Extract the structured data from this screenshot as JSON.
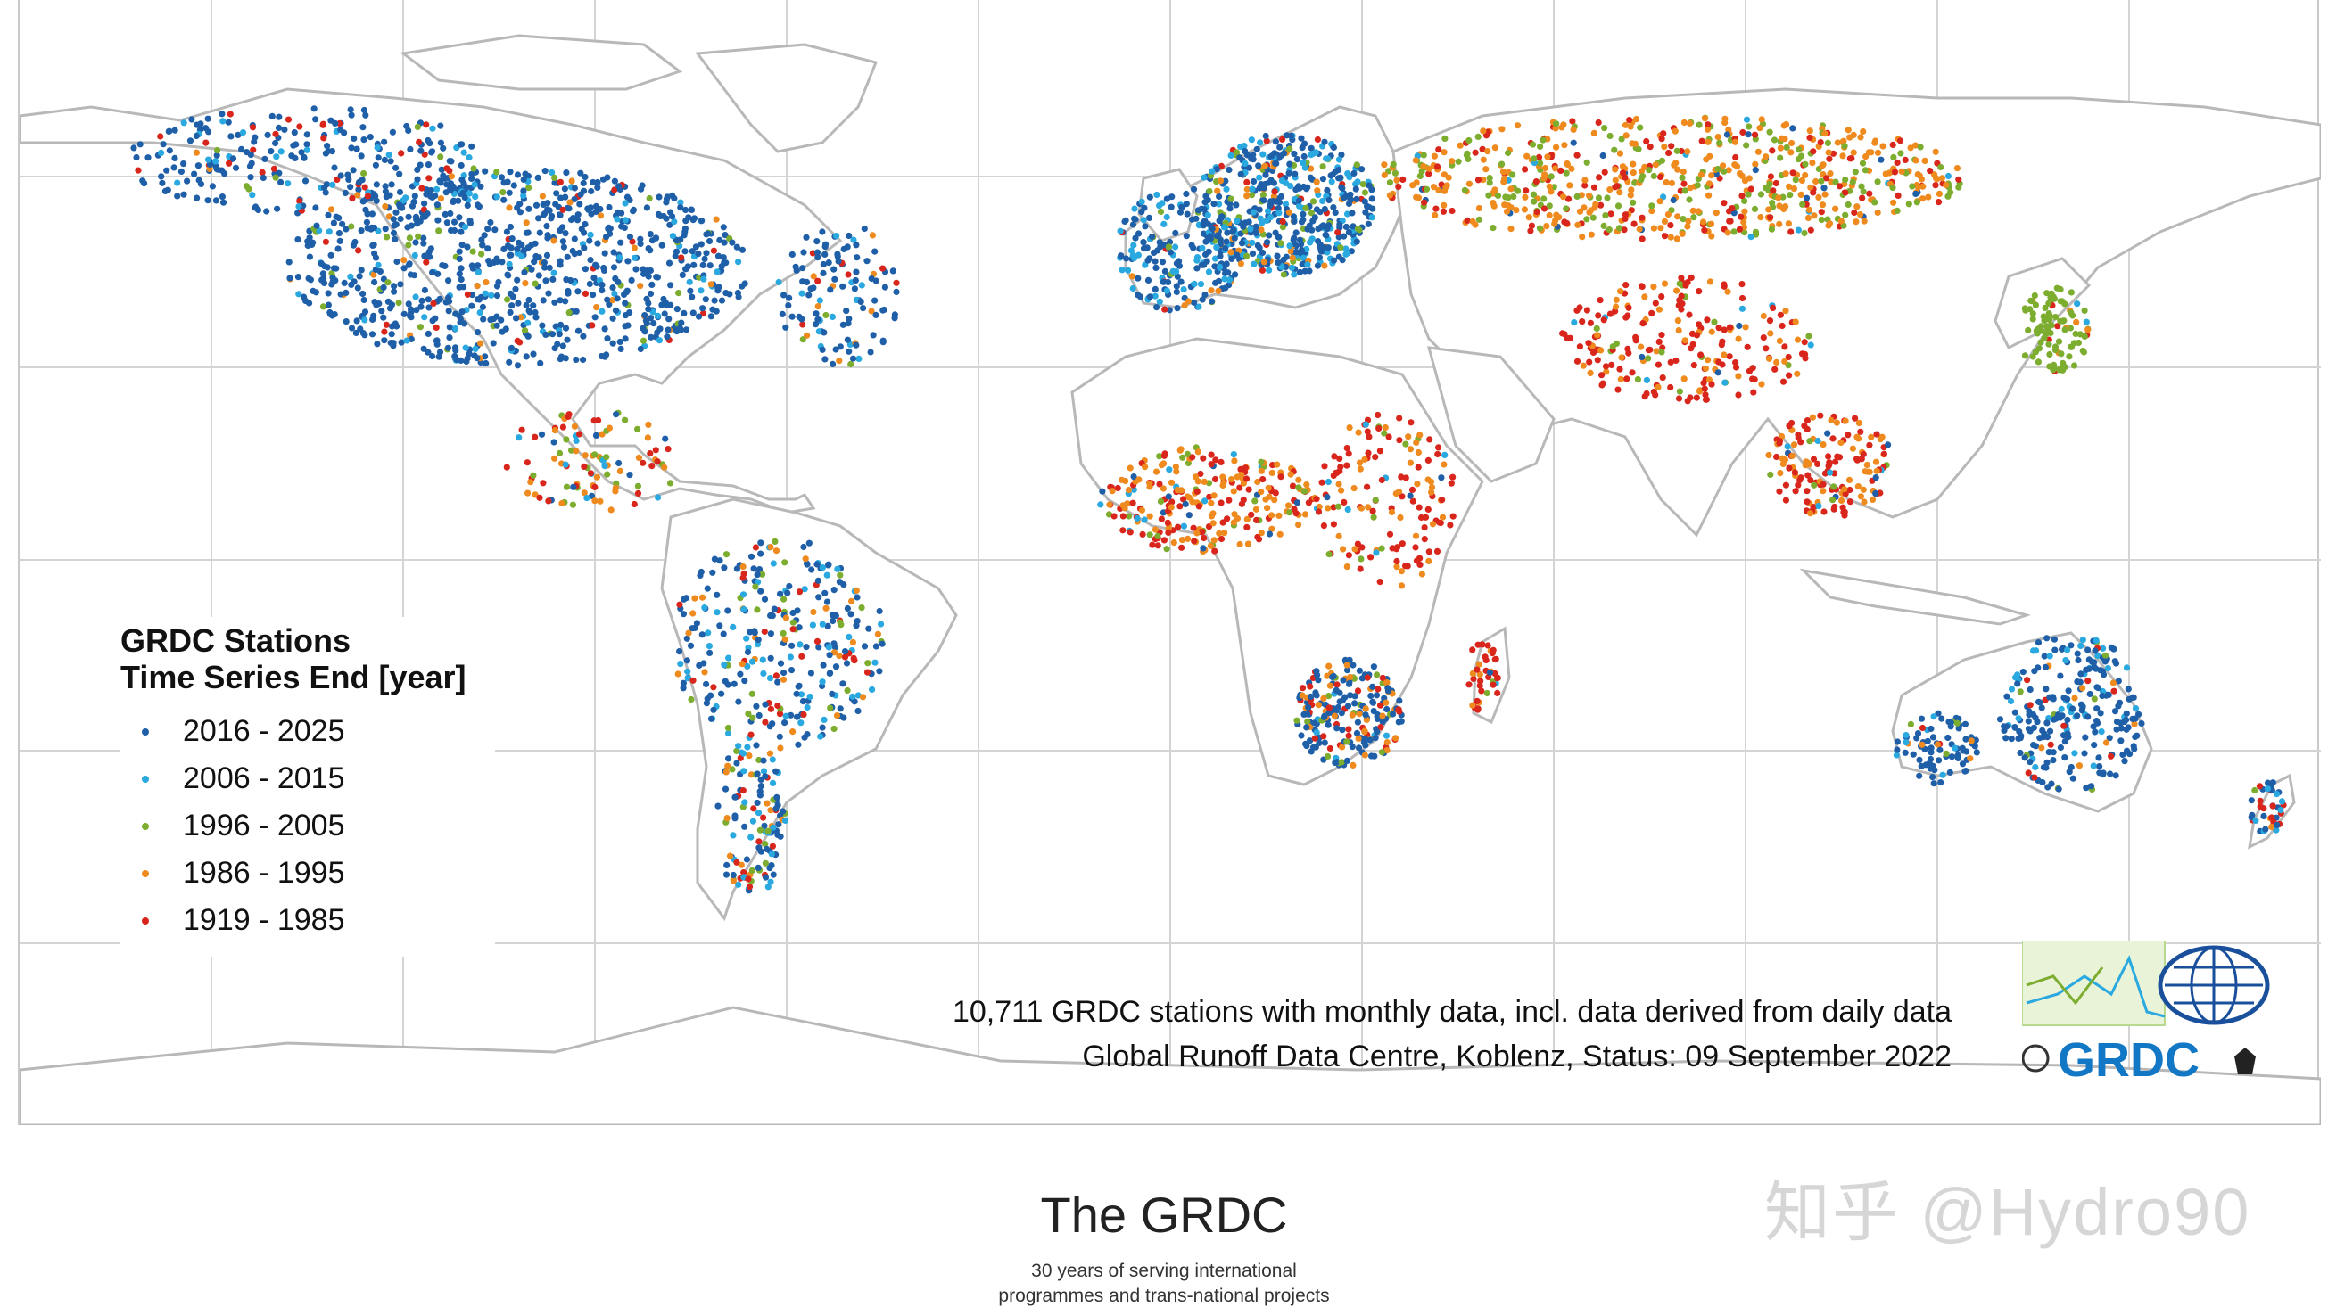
{
  "legend": {
    "title_line1": "GRDC Stations",
    "title_line2": "Time Series End [year]",
    "items": [
      {
        "label": "2016 - 2025",
        "color": "#1f5fa8"
      },
      {
        "label": "2006 - 2015",
        "color": "#2aa9e0"
      },
      {
        "label": "1996 - 2005",
        "color": "#7cad2e"
      },
      {
        "label": "1986 - 1995",
        "color": "#ef8a1e"
      },
      {
        "label": "1919 - 1985",
        "color": "#d9261c"
      }
    ]
  },
  "map": {
    "footnote1": "10,711 GRDC stations with monthly data, incl. data derived from daily data",
    "footnote2": "Global Runoff Data Centre, Koblenz, Status: 09 September 2022",
    "logo_text": "GRDC",
    "land_stroke": "#b8b8b8",
    "grid_color": "#d4d4d4"
  },
  "slide": {
    "title": "The GRDC",
    "subtitle_line1": "30 years of serving international",
    "subtitle_line2": "programmes and trans-national projects"
  },
  "watermark": "知乎 @Hydro90"
}
